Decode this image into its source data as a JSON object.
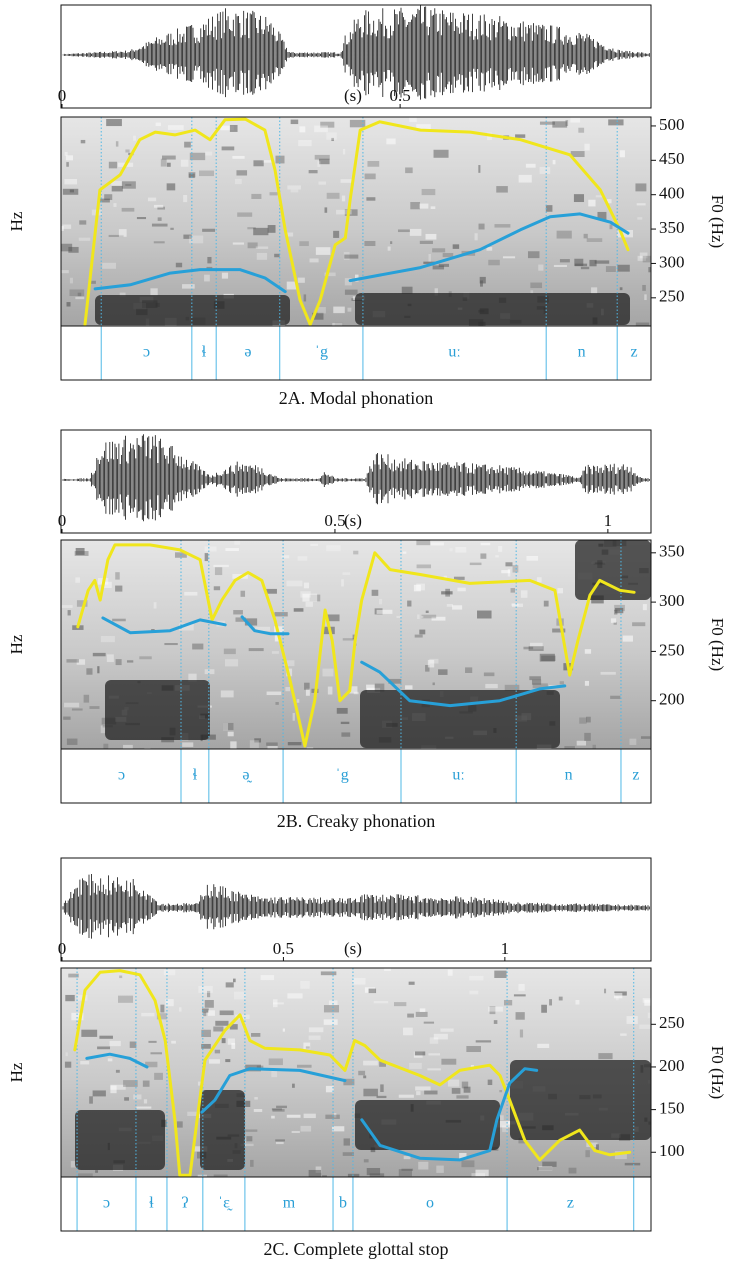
{
  "chart_data": [
    {
      "type": "line",
      "caption": "2A. Modal phonation",
      "y_label": "Hz",
      "y2_label": "F0 (Hz)",
      "x_unit_label": "(s)",
      "xlim": [
        0,
        0.871
      ],
      "xticks": [
        0,
        0.5
      ],
      "ylim": [
        209,
        513
      ],
      "yticks": [
        250,
        300,
        350,
        400,
        450,
        500
      ],
      "boundaries": [
        0.058,
        0.192,
        0.228,
        0.322,
        0.445,
        0.716,
        0.821
      ],
      "segments": [
        null,
        "ɔ",
        "ɬ",
        "ə",
        "ˈg",
        "uː",
        "n",
        "z"
      ],
      "series": [
        {
          "color": "#f0e61c",
          "x": [
            0.034,
            0.056,
            0.086,
            0.115,
            0.138,
            0.167,
            0.197,
            0.219,
            0.241,
            0.271,
            0.3,
            0.315,
            0.33,
            0.352,
            0.367,
            0.382,
            0.404,
            0.419,
            0.426,
            0.441,
            0.47,
            0.53,
            0.604,
            0.678,
            0.751,
            0.796,
            0.825,
            0.837
          ],
          "values": [
            211,
            407,
            429,
            480,
            491,
            487,
            494,
            480,
            509,
            510,
            494,
            436,
            349,
            247,
            211,
            247,
            327,
            337,
            392,
            494,
            506,
            494,
            491,
            480,
            458,
            407,
            349,
            320
          ]
        },
        {
          "color": "#27a0d8",
          "x": [
            0.049,
            0.101,
            0.16,
            0.204,
            0.263,
            0.3,
            0.33,
            0.38,
            0.426,
            0.53,
            0.618,
            0.678,
            0.722,
            0.766,
            0.811,
            0.837
          ],
          "values": [
            263,
            269,
            286,
            291,
            291,
            279,
            259,
            null,
            275,
            294,
            320,
            349,
            368,
            372,
            360,
            344
          ]
        }
      ]
    },
    {
      "type": "line",
      "caption": "2B. Creaky phonation",
      "y_label": "Hz",
      "y2_label": "F0 (Hz)",
      "x_unit_label": "(s)",
      "xlim": [
        0,
        1.079
      ],
      "xticks": [
        0,
        0.5,
        1
      ],
      "ylim": [
        151,
        363
      ],
      "yticks": [
        200,
        250,
        300,
        350
      ],
      "boundaries": [
        0.218,
        0.269,
        0.405,
        0.621,
        0.832,
        1.024
      ],
      "segments": [
        "ɔ",
        "ɬ",
        "ə̰",
        "ˈg",
        "uː",
        "n",
        "z"
      ],
      "series": [
        {
          "color": "#f0e61c",
          "x": [
            0.029,
            0.048,
            0.06,
            0.07,
            0.084,
            0.097,
            0.161,
            0.216,
            0.253,
            0.275,
            0.293,
            0.317,
            0.341,
            0.366,
            0.39,
            0.418,
            0.445,
            0.463,
            0.482,
            0.495,
            0.509,
            0.527,
            0.537,
            0.549,
            0.573,
            0.601,
            0.656,
            0.747,
            0.857,
            0.903,
            0.93,
            0.945,
            0.967,
            0.985,
            1.022,
            1.048
          ],
          "values": [
            275,
            312,
            322,
            302,
            343,
            358,
            358,
            353,
            343,
            282,
            302,
            322,
            330,
            322,
            282,
            220,
            154,
            200,
            292,
            261,
            200,
            210,
            261,
            302,
            350,
            333,
            328,
            319,
            322,
            312,
            226,
            261,
            307,
            322,
            312,
            310
          ]
        },
        {
          "color": "#27a0d8",
          "x": [
            0.075,
            0.125,
            0.198,
            0.253,
            0.299,
            0.315,
            0.33,
            0.353,
            0.381,
            0.414,
            0.48,
            0.549,
            0.582,
            0.637,
            0.711,
            0.802,
            0.875,
            0.921
          ],
          "values": [
            284,
            269,
            271,
            282,
            277,
            null,
            285,
            271,
            268,
            268,
            null,
            239,
            229,
            200,
            195,
            200,
            212,
            215
          ]
        }
      ]
    },
    {
      "type": "line",
      "caption": "2C. Complete glottal stop",
      "y_label": "Hz",
      "y2_label": "F0 (Hz)",
      "x_unit_label": "(s)",
      "xlim": [
        0,
        1.33
      ],
      "xticks": [
        0,
        0.5,
        1
      ],
      "ylim": [
        71,
        316
      ],
      "yticks": [
        100,
        150,
        200,
        250
      ],
      "boundaries": [
        0.034,
        0.167,
        0.237,
        0.318,
        0.413,
        0.612,
        0.657,
        1.005,
        1.291
      ],
      "segments": [
        null,
        "ɔ",
        "ɬ",
        "ʔ",
        "ˈɛ̰",
        "m",
        "b",
        "o",
        "z",
        null
      ],
      "series": [
        {
          "color": "#f0e61c",
          "x": [
            0.029,
            0.052,
            0.086,
            0.131,
            0.176,
            0.21,
            0.233,
            0.255,
            0.266,
            0.289,
            0.305,
            0.323,
            0.368,
            0.402,
            0.424,
            0.458,
            0.537,
            0.605,
            0.639,
            0.661,
            0.684,
            0.718,
            0.808,
            0.853,
            0.898,
            0.966,
            0.989,
            1.011,
            1.045,
            1.079,
            1.124,
            1.169,
            1.203,
            1.237,
            1.282
          ],
          "values": [
            220,
            290,
            311,
            313,
            308,
            278,
            231,
            138,
            73,
            73,
            138,
            208,
            243,
            261,
            231,
            222,
            220,
            214,
            196,
            231,
            225,
            208,
            190,
            179,
            196,
            202,
            190,
            161,
            114,
            91,
            114,
            126,
            102,
            97,
            100
          ]
        },
        {
          "color": "#27a0d8",
          "x": [
            0.056,
            0.108,
            0.153,
            0.192,
            0.25,
            0.316,
            0.345,
            0.379,
            0.424,
            0.537,
            0.639,
            0.66,
            0.677,
            0.718,
            0.808,
            0.898,
            0.966,
            0.982,
            1.011,
            1.045,
            1.072
          ],
          "values": [
            210,
            215,
            210,
            200,
            null,
            147,
            161,
            190,
            198,
            196,
            184,
            null,
            138,
            108,
            93,
            91,
            102,
            138,
            181,
            198,
            196
          ]
        }
      ]
    }
  ]
}
